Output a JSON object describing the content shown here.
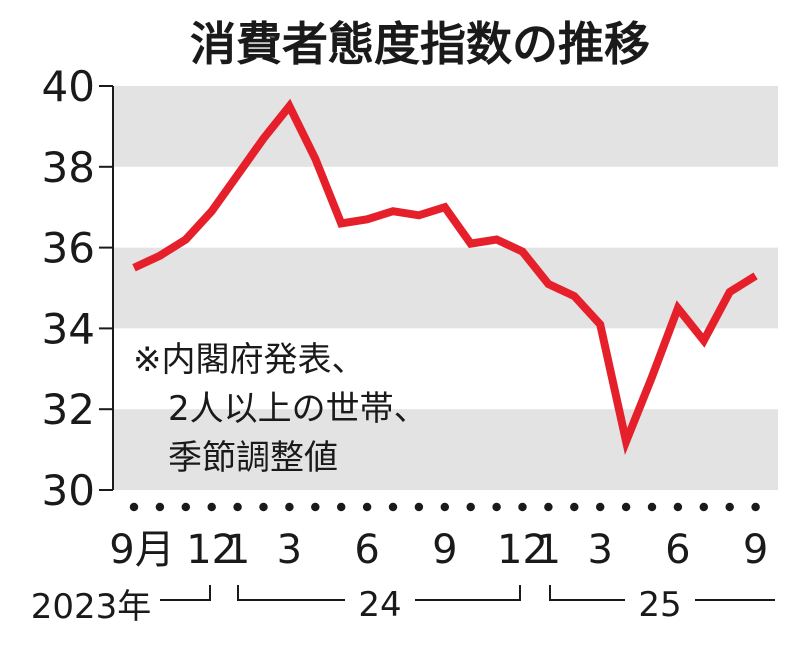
{
  "chart_data": {
    "type": "line",
    "title": "消費者態度指数の推移",
    "ylim": [
      30,
      40
    ],
    "yticks": [
      "30",
      "32",
      "34",
      "36",
      "38",
      "40"
    ],
    "x": [
      "2023-09",
      "2023-10",
      "2023-11",
      "2023-12",
      "2024-01",
      "2024-02",
      "2024-03",
      "2024-04",
      "2024-05",
      "2024-06",
      "2024-07",
      "2024-08",
      "2024-09",
      "2024-10",
      "2024-11",
      "2024-12",
      "2025-01",
      "2025-02",
      "2025-03",
      "2025-04",
      "2025-05",
      "2025-06",
      "2025-07",
      "2025-08",
      "2025-09"
    ],
    "series": [
      {
        "values": [
          35.5,
          35.8,
          36.2,
          36.9,
          37.8,
          38.7,
          39.5,
          38.2,
          36.6,
          36.7,
          36.9,
          36.8,
          37.0,
          36.1,
          36.2,
          35.9,
          35.1,
          34.8,
          34.1,
          31.2,
          32.8,
          34.5,
          33.7,
          34.9,
          35.3
        ]
      }
    ],
    "color": "#e5202b",
    "band_color": "#e3e3e3",
    "xtick_labels": [
      {
        "index": 0,
        "label": "9月"
      },
      {
        "index": 3,
        "label": "12"
      },
      {
        "index": 4,
        "label": "1"
      },
      {
        "index": 6,
        "label": "3"
      },
      {
        "index": 9,
        "label": "6"
      },
      {
        "index": 12,
        "label": "9"
      },
      {
        "index": 15,
        "label": "12"
      },
      {
        "index": 16,
        "label": "1"
      },
      {
        "index": 18,
        "label": "3"
      },
      {
        "index": 21,
        "label": "6"
      },
      {
        "index": 24,
        "label": "9"
      }
    ],
    "year_labels": [
      "2023年",
      "24",
      "25"
    ],
    "note": [
      "※内閣府発表、",
      "2人以上の世帯、",
      "季節調整値"
    ],
    "grid": "alternating horizontal bands"
  }
}
